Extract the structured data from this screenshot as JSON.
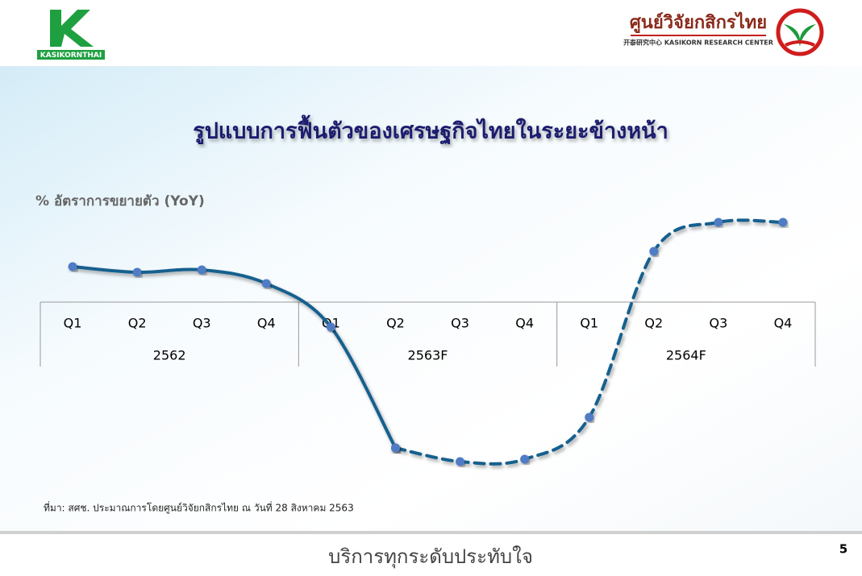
{
  "header": {
    "left_logo": "KASIKORNTHAI",
    "right_title": "ศูนย์วิจัยกสิกรไทย",
    "right_subtitle": "开泰研究中心 KASIKORN RESEARCH CENTER"
  },
  "chart_data": {
    "type": "line",
    "title": "รูปแบบการฟื้นตัวของเศรษฐกิจไทยในระยะข้างหน้า",
    "ylabel": "% อัตราการขยายตัว (YoY)",
    "categories": [
      "Q1",
      "Q2",
      "Q3",
      "Q4",
      "Q1",
      "Q2",
      "Q3",
      "Q4",
      "Q1",
      "Q2",
      "Q3",
      "Q4"
    ],
    "groups": [
      "2562",
      "2563F",
      "2564F"
    ],
    "series": [
      {
        "color": "#16608e",
        "dashed": false,
        "values": [
          3.45,
          3.1,
          3.25,
          2.4,
          -0.3,
          -7.8,
          null,
          null,
          null,
          null,
          null,
          null
        ]
      },
      {
        "color": "#16608e",
        "dashed": true,
        "values": [
          null,
          null,
          null,
          null,
          null,
          -7.8,
          -8.65,
          -8.5,
          -5.9,
          4.4,
          6.2,
          6.2
        ]
      }
    ],
    "marker_color": "#4f7cc4",
    "note": "ที่มา: สศช. ประมาณการโดยศูนย์วิจัยกสิกรไทย ณ วันที่ 28 สิงหาคม 2563"
  },
  "footer": {
    "slogan": "บริการทุกระดับประทับใจ",
    "page": "5"
  }
}
